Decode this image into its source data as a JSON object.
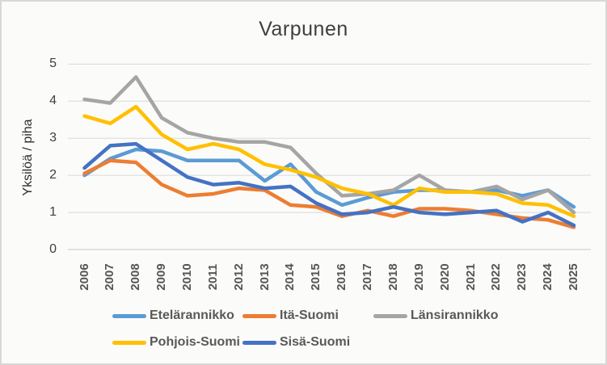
{
  "window": {
    "background": "#fbfbf9",
    "border_color": "#d8d8d8"
  },
  "chart_data": {
    "type": "line",
    "title": "Varpunen",
    "xlabel": "",
    "ylabel": "Yksilöä / piha",
    "ylim": [
      0,
      5
    ],
    "y_ticks": [
      "0",
      "1",
      "2",
      "3",
      "4",
      "5"
    ],
    "grid": true,
    "gridline_color": "#d9d9d9",
    "tick_text_color": "#404040",
    "legend_text_color": "#595959",
    "legend_position": "bottom",
    "categories": [
      "2006",
      "2007",
      "2008",
      "2009",
      "2010",
      "2011",
      "2012",
      "2013",
      "2014",
      "2015",
      "2016",
      "2017",
      "2018",
      "2019",
      "2020",
      "2021",
      "2022",
      "2023",
      "2024",
      "2025"
    ],
    "series": [
      {
        "name": "Etelärannikko",
        "color": "#5B9BD5",
        "values": [
          2.0,
          2.45,
          2.7,
          2.65,
          2.4,
          2.4,
          2.4,
          1.85,
          2.3,
          1.55,
          1.2,
          1.4,
          1.55,
          1.6,
          1.6,
          1.55,
          1.6,
          1.45,
          1.6,
          1.15
        ]
      },
      {
        "name": "Itä-Suomi",
        "color": "#ED7D31",
        "values": [
          2.05,
          2.4,
          2.35,
          1.75,
          1.45,
          1.5,
          1.65,
          1.6,
          1.2,
          1.15,
          0.9,
          1.05,
          0.9,
          1.1,
          1.1,
          1.05,
          0.95,
          0.85,
          0.8,
          0.6
        ]
      },
      {
        "name": "Länsirannikko",
        "color": "#A5A5A5",
        "values": [
          4.05,
          3.95,
          4.65,
          3.55,
          3.15,
          3.0,
          2.9,
          2.9,
          2.75,
          2.05,
          1.45,
          1.5,
          1.6,
          2.0,
          1.6,
          1.55,
          1.7,
          1.35,
          1.6,
          1.0
        ]
      },
      {
        "name": "Pohjois-Suomi",
        "color": "#FFC000",
        "values": [
          3.6,
          3.4,
          3.85,
          3.1,
          2.7,
          2.85,
          2.7,
          2.3,
          2.15,
          1.95,
          1.65,
          1.5,
          1.2,
          1.65,
          1.55,
          1.55,
          1.5,
          1.25,
          1.2,
          0.9
        ]
      },
      {
        "name": "Sisä-Suomi",
        "color": "#4472C4",
        "values": [
          2.2,
          2.8,
          2.85,
          2.4,
          1.95,
          1.75,
          1.8,
          1.65,
          1.7,
          1.25,
          0.95,
          1.0,
          1.15,
          1.0,
          0.95,
          1.0,
          1.05,
          0.75,
          1.0,
          0.65
        ]
      }
    ]
  }
}
